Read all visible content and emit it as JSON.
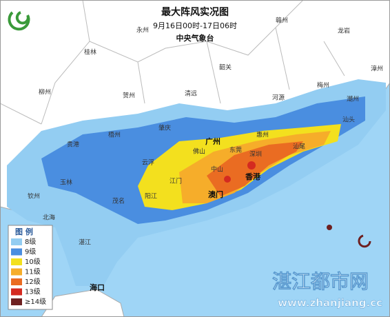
{
  "header": {
    "title": "最大阵风实况图",
    "date": "9月16日00时-17日06时",
    "agency": "中央气象台"
  },
  "legend": {
    "title": "图 例",
    "items": [
      {
        "label": "8级",
        "color": "#93cdf2"
      },
      {
        "label": "9级",
        "color": "#4a8ee0"
      },
      {
        "label": "10级",
        "color": "#f3e01e"
      },
      {
        "label": "11级",
        "color": "#f6ad2a"
      },
      {
        "label": "12级",
        "color": "#ea6c22"
      },
      {
        "label": "13级",
        "color": "#d42a20"
      },
      {
        "label": "≥14级",
        "color": "#6e2020"
      }
    ]
  },
  "cities": [
    "永州",
    "赣州",
    "龙岩",
    "桂林",
    "韶关",
    "漳州",
    "梅州",
    "柳州",
    "贺州",
    "清远",
    "河源",
    "潮州",
    "汕头",
    "肇庆",
    "广州",
    "惠州",
    "梧州",
    "贵港",
    "佛山",
    "东莞",
    "深圳",
    "汕尾",
    "云浮",
    "江门",
    "中山",
    "香港",
    "澳门",
    "玉林",
    "阳江",
    "茂名",
    "钦州",
    "北海",
    "湛江",
    "海口"
  ],
  "watermark": {
    "name": "湛江都市网",
    "url": "www.zhanjiang.cc"
  }
}
